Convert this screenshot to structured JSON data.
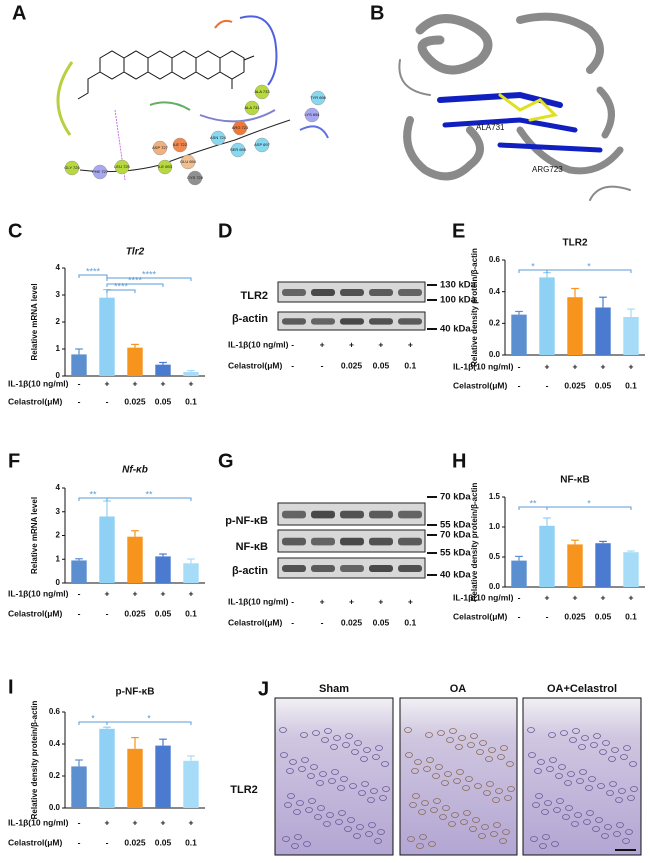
{
  "chart_data": [
    {
      "panel": "C",
      "type": "bar",
      "title": "Tlr2",
      "title_style": "italic",
      "ylabel": "Relative mRNA level",
      "values": [
        0.8,
        2.9,
        1.05,
        0.42,
        0.15
      ],
      "errors": [
        0.2,
        0.3,
        0.12,
        0.08,
        0.05
      ],
      "colors": [
        "#5b8fcf",
        "#8fd0f5",
        "#f7941d",
        "#4a7bd0",
        "#a6dcf7"
      ],
      "ylim": [
        0,
        4
      ],
      "yticks": [
        0,
        1,
        2,
        3,
        4
      ],
      "significance": [
        {
          "from": 0,
          "to": 1,
          "label": "****"
        },
        {
          "from": 1,
          "to": 2,
          "label": "****"
        },
        {
          "from": 1,
          "to": 3,
          "label": "****"
        },
        {
          "from": 1,
          "to": 4,
          "label": "****"
        }
      ],
      "conditions": [
        {
          "label": "IL-1β(10 ng/ml)",
          "values": [
            "-",
            "+",
            "+",
            "+",
            "+"
          ]
        },
        {
          "label": "Celastrol(μM)",
          "values": [
            "-",
            "-",
            "0.025",
            "0.05",
            "0.1"
          ]
        }
      ]
    },
    {
      "panel": "E",
      "type": "bar",
      "title": "TLR2",
      "title_style": "bold",
      "ylabel": "Relative density protein/β-actin",
      "values": [
        0.255,
        0.49,
        0.365,
        0.3,
        0.24
      ],
      "errors": [
        0.02,
        0.03,
        0.055,
        0.065,
        0.05
      ],
      "colors": [
        "#5b8fcf",
        "#8fd0f5",
        "#f7941d",
        "#4a7bd0",
        "#a6dcf7"
      ],
      "ylim": [
        0,
        0.6
      ],
      "yticks": [
        {
          "value": 0,
          "label": "0.0"
        },
        0.2,
        0.4,
        0.6
      ],
      "significance": [
        {
          "from": 0,
          "to": 1,
          "label": "*"
        },
        {
          "from": 1,
          "to": 4,
          "label": "*"
        }
      ],
      "conditions": [
        {
          "label": "IL-1β(10 ng/ml)",
          "values": [
            "-",
            "+",
            "+",
            "+",
            "+"
          ]
        },
        {
          "label": "Celastrol(μM)",
          "values": [
            "-",
            "-",
            "0.025",
            "0.05",
            "0.1"
          ]
        }
      ]
    },
    {
      "panel": "F",
      "type": "bar",
      "title": "Nf-κb",
      "title_style": "italic",
      "ylabel": "Relative mRNA level",
      "values": [
        0.95,
        2.8,
        1.95,
        1.12,
        0.83
      ],
      "errors": [
        0.07,
        0.65,
        0.25,
        0.1,
        0.18
      ],
      "colors": [
        "#5b8fcf",
        "#8fd0f5",
        "#f7941d",
        "#4a7bd0",
        "#a6dcf7"
      ],
      "ylim": [
        0,
        4
      ],
      "yticks": [
        0,
        1,
        2,
        3,
        4
      ],
      "significance": [
        {
          "from": 0,
          "to": 1,
          "label": "**"
        },
        {
          "from": 1,
          "to": 4,
          "label": "**"
        }
      ],
      "conditions": [
        {
          "label": "IL-1β(10 ng/ml)",
          "values": [
            "-",
            "+",
            "+",
            "+",
            "+"
          ]
        },
        {
          "label": "Celastrol(μM)",
          "values": [
            "-",
            "-",
            "0.025",
            "0.05",
            "0.1"
          ]
        }
      ]
    },
    {
      "panel": "H",
      "type": "bar",
      "title": "NF-κB",
      "title_style": "bold",
      "ylabel": "Relative density protein/β-actin",
      "values": [
        0.44,
        1.02,
        0.71,
        0.73,
        0.58
      ],
      "errors": [
        0.07,
        0.13,
        0.07,
        0.03,
        0.02
      ],
      "colors": [
        "#5b8fcf",
        "#8fd0f5",
        "#f7941d",
        "#4a7bd0",
        "#a6dcf7"
      ],
      "ylim": [
        0,
        1.5
      ],
      "yticks": [
        {
          "value": 0,
          "label": "0.0"
        },
        0.5,
        {
          "value": 1,
          "label": "1.0"
        },
        1.5
      ],
      "significance": [
        {
          "from": 0,
          "to": 1,
          "label": "**"
        },
        {
          "from": 1,
          "to": 4,
          "label": "*"
        }
      ],
      "conditions": [
        {
          "label": "IL-1β(10 ng/ml)",
          "values": [
            "-",
            "+",
            "+",
            "+",
            "+"
          ]
        },
        {
          "label": "Celastrol(μM)",
          "values": [
            "-",
            "-",
            "0.025",
            "0.05",
            "0.1"
          ]
        }
      ]
    },
    {
      "panel": "I",
      "type": "bar",
      "title": "p-NF-κB",
      "title_style": "bold",
      "ylabel": "Relative density protein/β-actin",
      "values": [
        0.26,
        0.495,
        0.37,
        0.39,
        0.295
      ],
      "errors": [
        0.04,
        0.01,
        0.07,
        0.04,
        0.03
      ],
      "colors": [
        "#5b8fcf",
        "#8fd0f5",
        "#f7941d",
        "#4a7bd0",
        "#a6dcf7"
      ],
      "ylim": [
        0,
        0.6
      ],
      "yticks": [
        {
          "value": 0,
          "label": "0.0"
        },
        0.2,
        0.4,
        0.6
      ],
      "significance": [
        {
          "from": 0,
          "to": 1,
          "label": "*"
        },
        {
          "from": 1,
          "to": 4,
          "label": "*"
        }
      ],
      "conditions": [
        {
          "label": "IL-1β(10 ng/ml)",
          "values": [
            "-",
            "+",
            "+",
            "+",
            "+"
          ]
        },
        {
          "label": "Celastrol(μM)",
          "values": [
            "-",
            "-",
            "0.025",
            "0.05",
            "0.1"
          ]
        }
      ]
    }
  ],
  "docking": {
    "panel": "A",
    "residues": [
      "ALA 733",
      "ALA 731",
      "TYR 698",
      "LYS 694",
      "ARG 723",
      "ASN 724",
      "SER 695",
      "ASP 697",
      "ILE 722",
      "ASP 727",
      "GLU 694",
      "ILE 693",
      "LEU 725",
      "PHE 727",
      "GLY 726",
      "CYS 728"
    ]
  },
  "structure": {
    "panel": "B",
    "residues": [
      "ALA731",
      "ARG723"
    ]
  },
  "blots": [
    {
      "panel": "D",
      "bands": [
        "TLR2",
        "β-actin"
      ],
      "markers": [
        "130 kDa",
        "100 kDa",
        "40 kDa"
      ],
      "conditions": [
        {
          "label": "IL-1β(10 ng/ml)",
          "values": [
            "-",
            "+",
            "+",
            "+",
            "+"
          ]
        },
        {
          "label": "Celastrol(μM)",
          "values": [
            "-",
            "-",
            "0.025",
            "0.05",
            "0.1"
          ]
        }
      ]
    },
    {
      "panel": "G",
      "bands": [
        "p-NF-κB",
        "NF-κB",
        "β-actin"
      ],
      "markers": [
        "70 kDa",
        "55 kDa",
        "70 kDa",
        "55 kDa",
        "40 kDa"
      ],
      "conditions": [
        {
          "label": "IL-1β(10 ng/ml)",
          "values": [
            "-",
            "+",
            "+",
            "+",
            "+"
          ]
        },
        {
          "label": "Celastrol(μM)",
          "values": [
            "-",
            "-",
            "0.025",
            "0.05",
            "0.1"
          ]
        }
      ]
    }
  ],
  "histology": {
    "panel": "J",
    "columns": [
      "Sham",
      "OA",
      "OA+Celastrol"
    ],
    "row": "TLR2"
  }
}
